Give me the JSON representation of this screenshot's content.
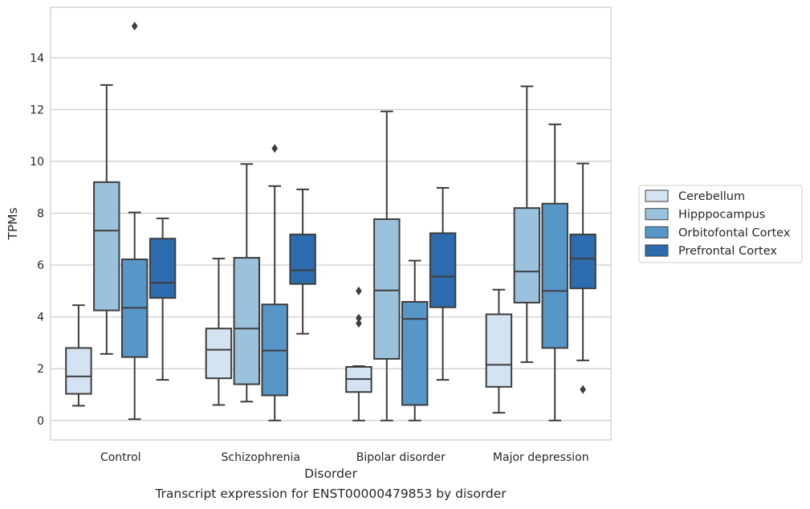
{
  "chart_data": {
    "type": "boxplot",
    "caption": "Transcript expression for ENST00000479853 by disorder",
    "xlabel": "Disorder",
    "ylabel": "TPMs",
    "ylim": [
      -0.75,
      15.95
    ],
    "yticks": [
      0,
      2,
      4,
      6,
      8,
      10,
      12,
      14
    ],
    "ytick_labels": [
      "0",
      "2",
      "4",
      "6",
      "8",
      "10",
      "12",
      "14"
    ],
    "grid": "horizontal",
    "legend_placement": "right, outside plot",
    "categories": [
      "Control",
      "Schizophrenia",
      "Bipolar disorder",
      "Major depression"
    ],
    "series": [
      {
        "name": "Cerebellum",
        "color": "#d3e3f2",
        "boxes": [
          {
            "whisker_low": 0.57,
            "q1": 1.03,
            "median": 1.7,
            "q3": 2.8,
            "whisker_high": 4.45,
            "outliers": []
          },
          {
            "whisker_low": 0.6,
            "q1": 1.63,
            "median": 2.73,
            "q3": 3.55,
            "whisker_high": 6.25,
            "outliers": []
          },
          {
            "whisker_low": 0.0,
            "q1": 1.1,
            "median": 1.6,
            "q3": 2.07,
            "whisker_high": 2.1,
            "outliers": [
              5.0,
              3.95,
              3.75
            ]
          },
          {
            "whisker_low": 0.3,
            "q1": 1.3,
            "median": 2.15,
            "q3": 4.1,
            "whisker_high": 5.05,
            "outliers": []
          }
        ]
      },
      {
        "name": "Hipppocampus",
        "color": "#9bc2dd",
        "boxes": [
          {
            "whisker_low": 2.57,
            "q1": 4.25,
            "median": 7.33,
            "q3": 9.2,
            "whisker_high": 12.95,
            "outliers": []
          },
          {
            "whisker_low": 0.73,
            "q1": 1.4,
            "median": 3.55,
            "q3": 6.28,
            "whisker_high": 9.9,
            "outliers": []
          },
          {
            "whisker_low": 0.0,
            "q1": 2.38,
            "median": 5.02,
            "q3": 7.77,
            "whisker_high": 11.93,
            "outliers": []
          },
          {
            "whisker_low": 2.25,
            "q1": 4.55,
            "median": 5.75,
            "q3": 8.2,
            "whisker_high": 12.9,
            "outliers": []
          }
        ]
      },
      {
        "name": "Orbitofontal Cortex",
        "color": "#5697c8",
        "boxes": [
          {
            "whisker_low": 0.05,
            "q1": 2.45,
            "median": 4.35,
            "q3": 6.22,
            "whisker_high": 8.03,
            "outliers": [
              15.22
            ]
          },
          {
            "whisker_low": 0.0,
            "q1": 0.97,
            "median": 2.7,
            "q3": 4.48,
            "whisker_high": 9.05,
            "outliers": [
              10.5
            ]
          },
          {
            "whisker_low": 0.0,
            "q1": 0.6,
            "median": 3.92,
            "q3": 4.58,
            "whisker_high": 6.17,
            "outliers": []
          },
          {
            "whisker_low": 0.0,
            "q1": 2.8,
            "median": 5.0,
            "q3": 8.37,
            "whisker_high": 11.43,
            "outliers": []
          }
        ]
      },
      {
        "name": "Prefrontal Cortex",
        "color": "#2c6cae",
        "boxes": [
          {
            "whisker_low": 1.57,
            "q1": 4.73,
            "median": 5.32,
            "q3": 7.02,
            "whisker_high": 7.8,
            "outliers": []
          },
          {
            "whisker_low": 3.35,
            "q1": 5.27,
            "median": 5.8,
            "q3": 7.18,
            "whisker_high": 8.92,
            "outliers": []
          },
          {
            "whisker_low": 1.57,
            "q1": 4.37,
            "median": 5.55,
            "q3": 7.23,
            "whisker_high": 8.98,
            "outliers": []
          },
          {
            "whisker_low": 2.32,
            "q1": 5.1,
            "median": 6.25,
            "q3": 7.18,
            "whisker_high": 9.92,
            "outliers": [
              1.2
            ]
          }
        ]
      }
    ]
  }
}
